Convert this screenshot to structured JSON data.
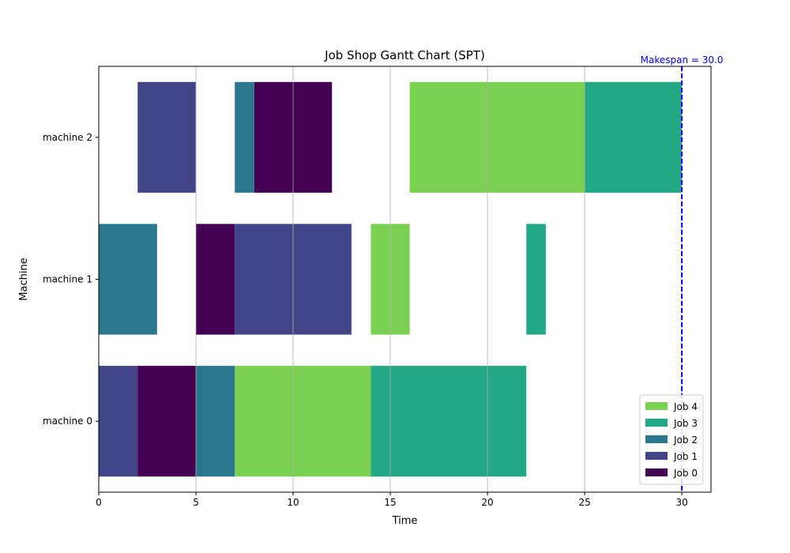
{
  "chart_data": {
    "type": "gantt",
    "title": "Job Shop Gantt Chart (SPT)",
    "xlabel": "Time",
    "ylabel": "Machine",
    "xlim": [
      0,
      31.5
    ],
    "xticks": [
      0,
      5,
      10,
      15,
      20,
      25,
      30
    ],
    "grid": "vertical",
    "machines": [
      "machine 0",
      "machine 1",
      "machine 2"
    ],
    "jobs": [
      {
        "name": "Job 0",
        "color": "#440154"
      },
      {
        "name": "Job 1",
        "color": "#414487"
      },
      {
        "name": "Job 2",
        "color": "#2a788e"
      },
      {
        "name": "Job 3",
        "color": "#22a884"
      },
      {
        "name": "Job 4",
        "color": "#7ad151"
      }
    ],
    "tasks": [
      {
        "machine": "machine 0",
        "job": "Job 1",
        "start": 0,
        "end": 2
      },
      {
        "machine": "machine 0",
        "job": "Job 0",
        "start": 2,
        "end": 5
      },
      {
        "machine": "machine 0",
        "job": "Job 2",
        "start": 5,
        "end": 7
      },
      {
        "machine": "machine 0",
        "job": "Job 4",
        "start": 7,
        "end": 14
      },
      {
        "machine": "machine 0",
        "job": "Job 3",
        "start": 14,
        "end": 22
      },
      {
        "machine": "machine 1",
        "job": "Job 2",
        "start": 0,
        "end": 3
      },
      {
        "machine": "machine 1",
        "job": "Job 0",
        "start": 5,
        "end": 7
      },
      {
        "machine": "machine 1",
        "job": "Job 1",
        "start": 7,
        "end": 13
      },
      {
        "machine": "machine 1",
        "job": "Job 4",
        "start": 14,
        "end": 16
      },
      {
        "machine": "machine 1",
        "job": "Job 3",
        "start": 22,
        "end": 23
      },
      {
        "machine": "machine 2",
        "job": "Job 1",
        "start": 2,
        "end": 5
      },
      {
        "machine": "machine 2",
        "job": "Job 2",
        "start": 7,
        "end": 8
      },
      {
        "machine": "machine 2",
        "job": "Job 0",
        "start": 8,
        "end": 12
      },
      {
        "machine": "machine 2",
        "job": "Job 4",
        "start": 16,
        "end": 25
      },
      {
        "machine": "machine 2",
        "job": "Job 3",
        "start": 25,
        "end": 30
      }
    ],
    "makespan": {
      "value": 30.0,
      "label": "Makespan = 30.0",
      "color": "#0000ff",
      "style": "dashed"
    },
    "legend": {
      "position": "lower-right",
      "order": [
        "Job 4",
        "Job 3",
        "Job 2",
        "Job 1",
        "Job 0"
      ]
    }
  }
}
